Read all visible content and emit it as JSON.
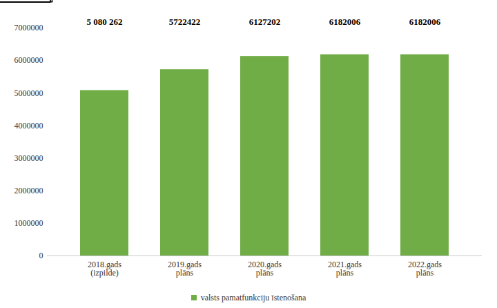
{
  "chart_data": {
    "type": "bar",
    "categories": [
      "2018.gads\n(izpilde)",
      "2019.gads\nplāns",
      "2020.gads\nplāns",
      "2021.gads\nplāns",
      "2022.gads\nplāns"
    ],
    "series": [
      {
        "name": "valsts pamatfunkciju īstenošana",
        "color": "#70ad47",
        "values": [
          5080262,
          5722422,
          6127202,
          6182006,
          6182006
        ],
        "value_labels": [
          "5 080 262",
          "5722422",
          "6127202",
          "6182006",
          "6182006"
        ]
      }
    ],
    "ylim": [
      0,
      7000000
    ],
    "yticks": [
      0,
      1000000,
      2000000,
      3000000,
      4000000,
      5000000,
      6000000,
      7000000
    ],
    "grid": false,
    "data_labels": true,
    "legend": "bottom"
  }
}
